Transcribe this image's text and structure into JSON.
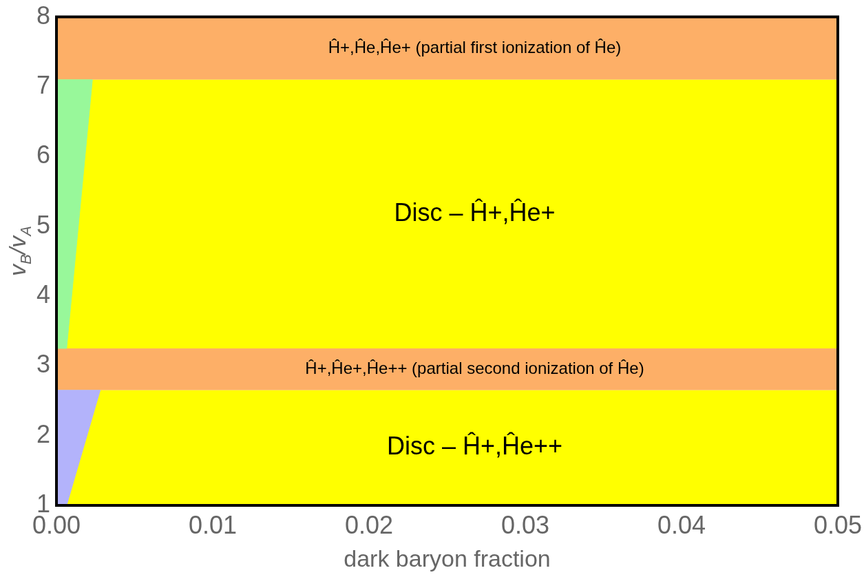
{
  "chart_data": {
    "type": "area",
    "xlabel": "dark baryon fraction",
    "ylabel": "v$_{B}$/v$_{A}$",
    "xlim": [
      0,
      0.05
    ],
    "xticks": [
      {
        "value": 0,
        "label": "0.00"
      },
      {
        "value": 0.01,
        "label": "0.01"
      },
      {
        "value": 0.02,
        "label": "0.02"
      },
      {
        "value": 0.03,
        "label": "0.03"
      },
      {
        "value": 0.04,
        "label": "0.04"
      },
      {
        "value": 0.05,
        "label": "0.05"
      }
    ],
    "ylim": [
      1,
      8
    ],
    "yticks": [
      1,
      2,
      3,
      4,
      5,
      6,
      7,
      8
    ],
    "bands": [
      {
        "axis": "y",
        "from": 7.1,
        "to": 8,
        "label": "Ĥ+,Ĥe,Ĥe+ (partial first ionization of Ĥe)",
        "color": "#fdaf67"
      },
      {
        "axis": "y",
        "from": 3.25,
        "to": 7.1,
        "label": "Disc – Ĥ+,Ĥe+",
        "color": "#ffff00"
      },
      {
        "axis": "y",
        "from": 2.65,
        "to": 3.25,
        "label": "Ĥ+,Ĥe+,Ĥe++ (partial second ionization of Ĥe)",
        "color": "#fdaf67"
      },
      {
        "axis": "y",
        "from": 1,
        "to": 2.65,
        "label": "Disc – Ĥ+,Ĥe++",
        "color": "#ffff00"
      }
    ],
    "series": [
      {
        "color": "#98f89a",
        "x": [
          0,
          0.00065,
          0.0023,
          0
        ],
        "values": [
          3.25,
          3.25,
          7.1,
          7.1
        ]
      },
      {
        "color": "#b3b3fb",
        "x": [
          0,
          0.00065,
          0.0028,
          0
        ],
        "values": [
          1,
          1,
          2.65,
          2.65
        ]
      }
    ]
  }
}
